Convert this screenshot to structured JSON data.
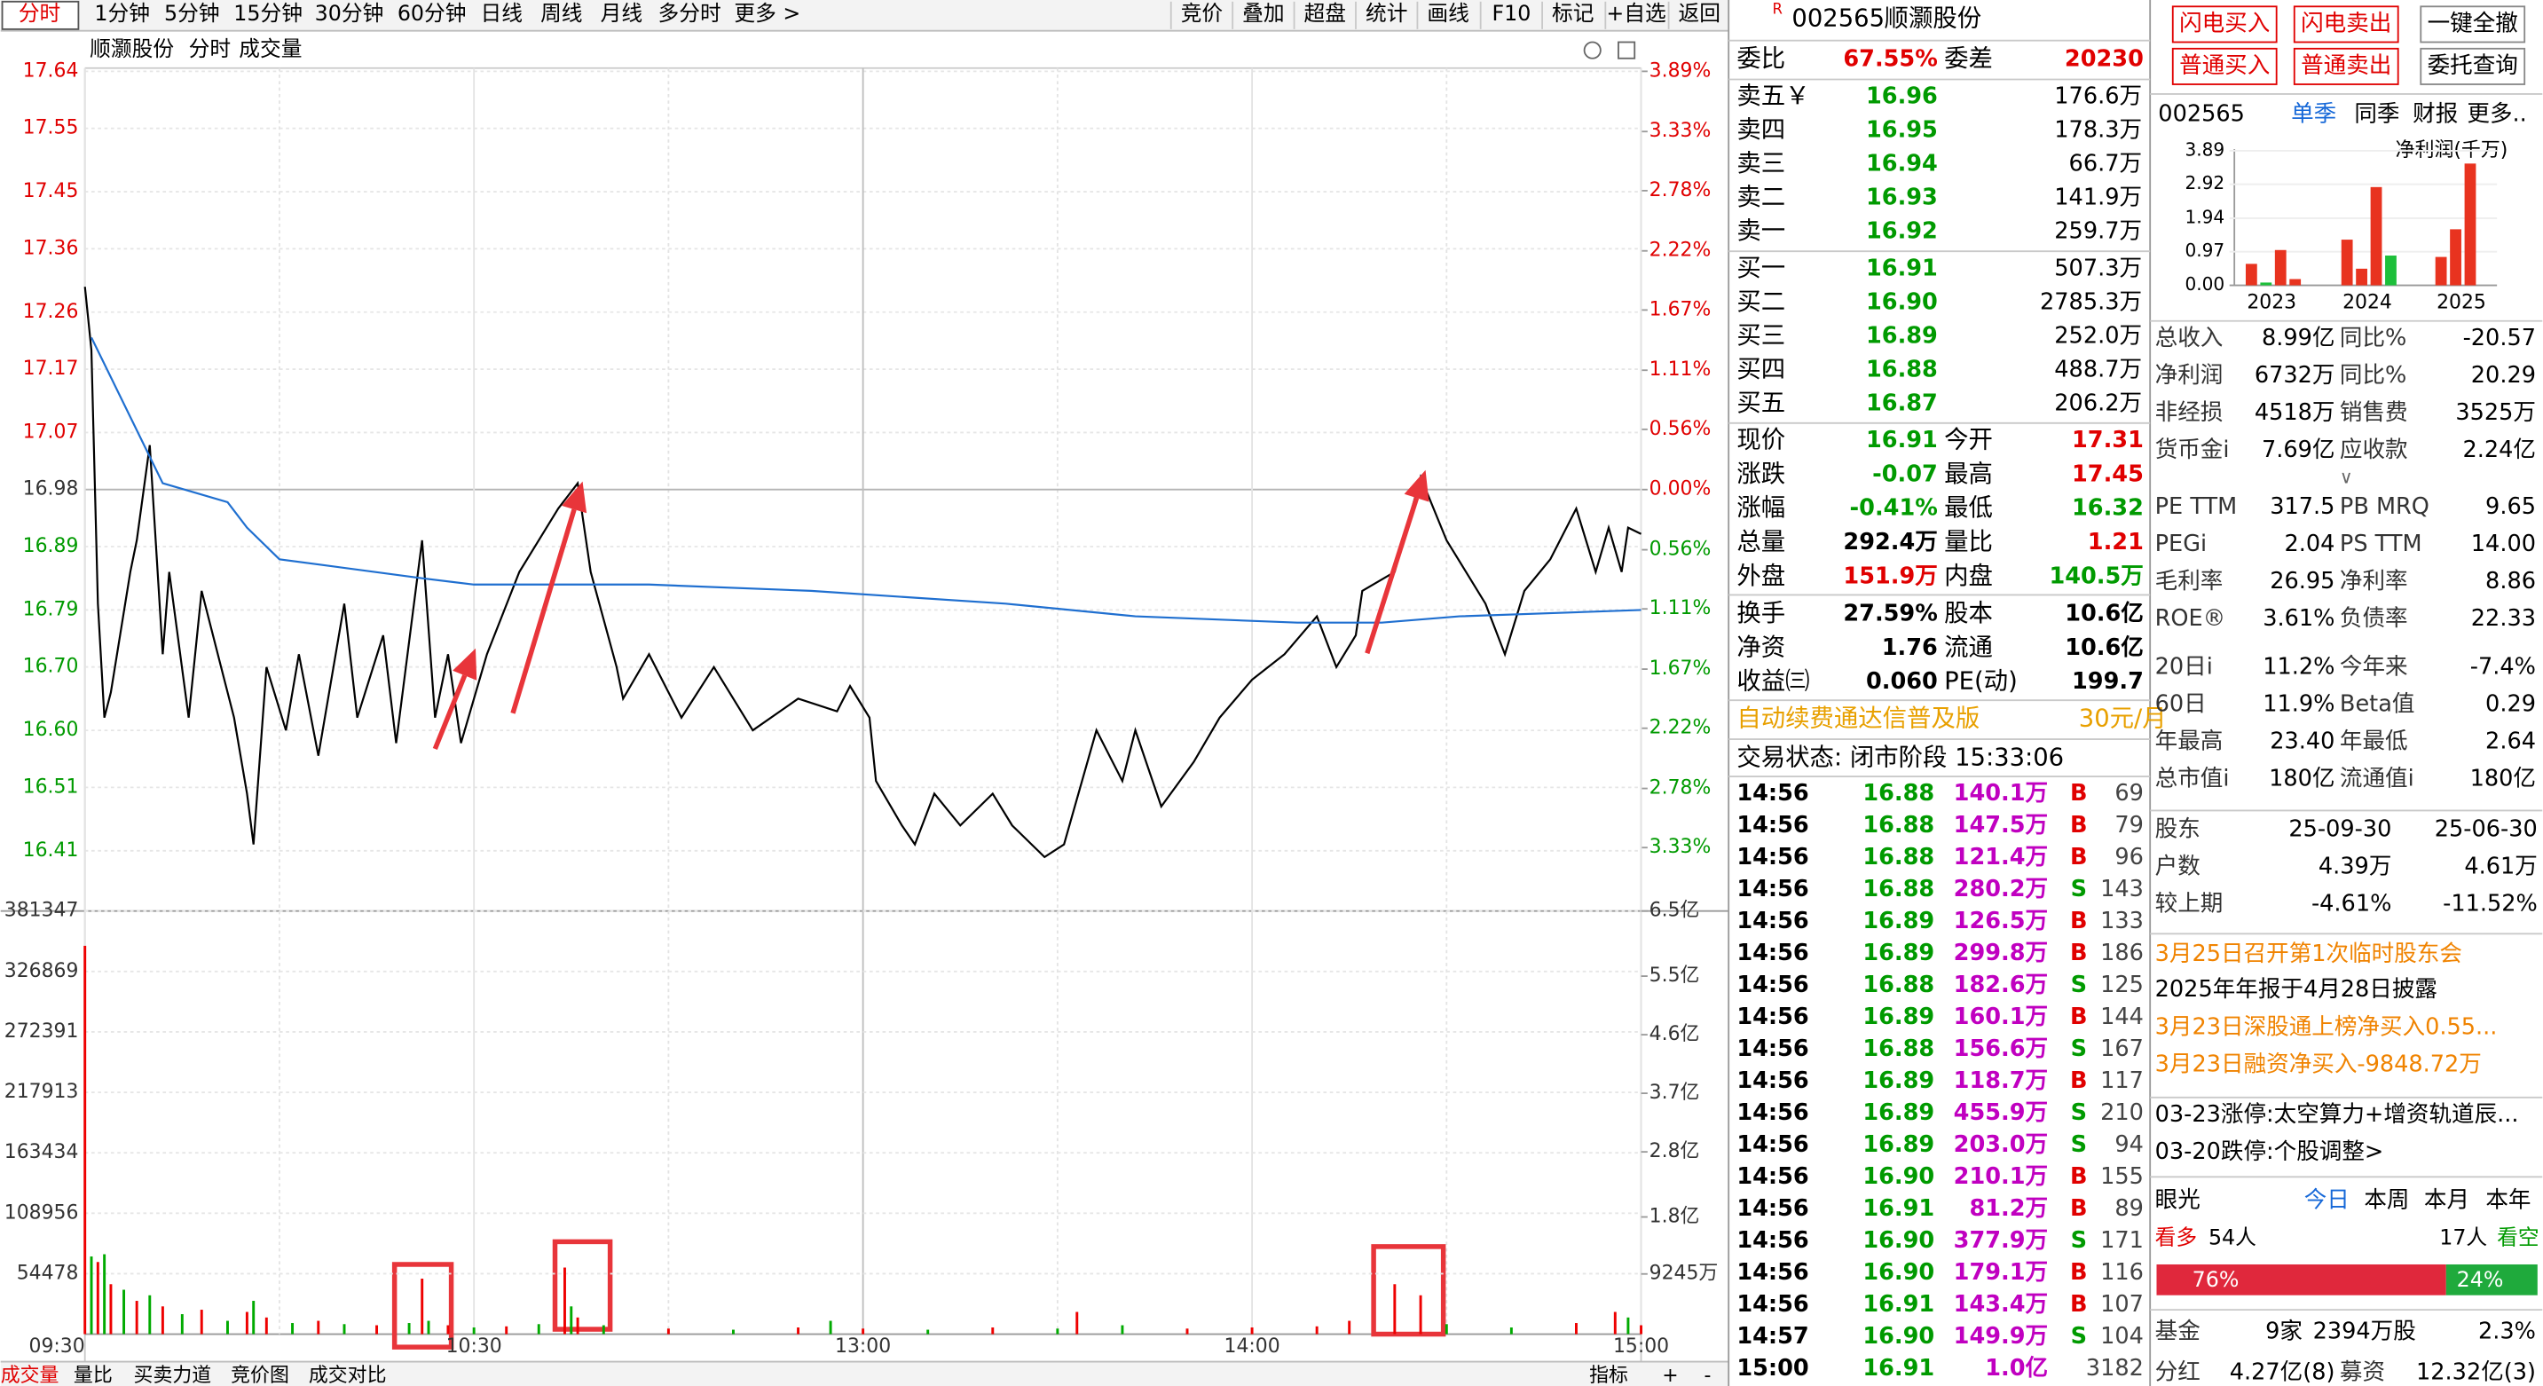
{
  "toolbar": {
    "tabs": [
      "分时",
      "1分钟",
      "5分钟",
      "15分钟",
      "30分钟",
      "60分钟",
      "日线",
      "周线",
      "月线",
      "多分时",
      "更多 >"
    ],
    "actions": [
      "竞价",
      "叠加",
      "超盘",
      "统计",
      "画线",
      "F10",
      "标记",
      "+自选",
      "返回"
    ]
  },
  "chart_header": [
    "顺灏股份",
    "分时",
    "成交量"
  ],
  "price_chart": {
    "type": "line",
    "xlim": [
      0,
      240
    ],
    "xticks": [
      {
        "value": 0,
        "label": "09:30"
      },
      {
        "value": 60,
        "label": "10:30"
      },
      {
        "value": 120,
        "label": "13:00"
      },
      {
        "value": 180,
        "label": "14:00"
      },
      {
        "value": 240,
        "label": "15:00"
      }
    ],
    "ylim": [
      16.32,
      17.64
    ],
    "yticks": [
      17.64,
      17.55,
      17.45,
      17.36,
      17.26,
      17.17,
      17.07,
      16.98,
      16.89,
      16.79,
      {
        "value": 16.7,
        "label": "16.70"
      },
      {
        "value": 16.6,
        "label": "16.60"
      },
      16.51,
      16.41
    ],
    "y2lim": [
      -3.89,
      3.89
    ],
    "y2ticks": [
      {
        "value": 3.89,
        "label": "3.89%"
      },
      {
        "value": 3.33,
        "label": "3.33%"
      },
      {
        "value": 2.78,
        "label": "2.78%"
      },
      {
        "value": 2.22,
        "label": "2.22%"
      },
      {
        "value": 1.67,
        "label": "1.67%"
      },
      {
        "value": 1.11,
        "label": "1.11%"
      },
      {
        "value": 0.56,
        "label": "0.56%"
      },
      {
        "value": 0,
        "label": "0.00%"
      },
      {
        "value": -0.56,
        "label": "0.56%"
      },
      {
        "value": -1.11,
        "label": "1.11%"
      },
      {
        "value": -1.67,
        "label": "1.67%"
      },
      {
        "value": -2.22,
        "label": "2.22%"
      },
      {
        "value": -2.78,
        "label": "2.78%"
      },
      {
        "value": -3.33,
        "label": "3.33%"
      }
    ],
    "series": [
      {
        "color": "#000000",
        "x": [
          0,
          1,
          2,
          3,
          4,
          7,
          8,
          10,
          12,
          13,
          16,
          18,
          21,
          23,
          25,
          26,
          28,
          31,
          33,
          36,
          40,
          42,
          46,
          48,
          52,
          54,
          56,
          58,
          62,
          67,
          73,
          76,
          78,
          82,
          83,
          87,
          92,
          97,
          103,
          110,
          116,
          118,
          121,
          122,
          126,
          128,
          131,
          135,
          140,
          143,
          148,
          151,
          156,
          160,
          162,
          166,
          171,
          175,
          180,
          185,
          190,
          193,
          196,
          197,
          202,
          206,
          210,
          213,
          216,
          219,
          222,
          226,
          230,
          233,
          235,
          237,
          238,
          240
        ],
        "values": [
          17.3,
          17.2,
          16.8,
          16.62,
          16.66,
          16.85,
          16.9,
          17.05,
          16.72,
          16.85,
          16.62,
          16.82,
          16.7,
          16.62,
          16.5,
          16.42,
          16.7,
          16.6,
          16.72,
          16.56,
          16.8,
          16.62,
          16.75,
          16.58,
          16.9,
          16.62,
          16.72,
          16.58,
          16.72,
          16.85,
          16.95,
          16.99,
          16.85,
          16.7,
          16.65,
          16.72,
          16.62,
          16.7,
          16.6,
          16.65,
          16.63,
          16.67,
          16.62,
          16.52,
          16.45,
          16.42,
          16.5,
          16.45,
          16.5,
          16.45,
          16.4,
          16.42,
          16.6,
          16.52,
          16.6,
          16.48,
          16.55,
          16.62,
          16.68,
          16.72,
          16.78,
          16.7,
          16.75,
          16.82,
          16.85,
          17.0,
          16.9,
          16.85,
          16.8,
          16.72,
          16.82,
          16.87,
          16.95,
          16.85,
          16.92,
          16.85,
          16.92,
          16.91
        ]
      },
      {
        "color": "#1f6fd0",
        "x": [
          1,
          12,
          22,
          25,
          30,
          52,
          60,
          87,
          112,
          142,
          162,
          187,
          200,
          212,
          240
        ],
        "values": [
          17.22,
          16.99,
          16.96,
          16.92,
          16.87,
          16.84,
          16.83,
          16.83,
          16.82,
          16.8,
          16.78,
          16.77,
          16.77,
          16.78,
          16.79
        ]
      }
    ]
  },
  "volume_chart": {
    "type": "bar",
    "ylim": [
      0,
      381347
    ],
    "yticks": [
      381347,
      326869,
      272391,
      217913,
      163434,
      108956,
      54478
    ],
    "y2lim": [
      0,
      6.5
    ],
    "y2ticks": [
      {
        "value": 6.5,
        "label": "6.5亿"
      },
      {
        "value": 5.5,
        "label": "5.5亿"
      },
      {
        "value": 4.6,
        "label": "4.6亿"
      },
      {
        "value": 3.7,
        "label": "3.7亿"
      },
      {
        "value": 2.8,
        "label": "2.8亿"
      },
      {
        "value": 1.8,
        "label": "1.8亿"
      },
      {
        "value": 0.9245,
        "label": "9245万"
      }
    ],
    "x": [
      0,
      1,
      2,
      3,
      4,
      6,
      8,
      10,
      12,
      15,
      18,
      22,
      25,
      26,
      28,
      32,
      36,
      40,
      45,
      50,
      52,
      53,
      56,
      60,
      65,
      70,
      74,
      75,
      76,
      80,
      90,
      100,
      110,
      115,
      120,
      130,
      140,
      150,
      153,
      160,
      170,
      180,
      190,
      195,
      202,
      206,
      210,
      220,
      230,
      236,
      238,
      240
    ],
    "values": [
      350000,
      70000,
      65000,
      72000,
      45000,
      40000,
      30000,
      35000,
      25000,
      18000,
      22000,
      12000,
      20000,
      30000,
      15000,
      10000,
      12000,
      9000,
      8000,
      10000,
      50000,
      12000,
      8000,
      6000,
      7000,
      9000,
      60000,
      25000,
      15000,
      8000,
      5000,
      4000,
      6000,
      12000,
      5000,
      4000,
      6000,
      5000,
      20000,
      8000,
      5000,
      6000,
      7000,
      12000,
      45000,
      35000,
      9000,
      6000,
      10000,
      20000,
      15000,
      8000
    ],
    "colors": [
      "#e00",
      "#0a0",
      "#e00",
      "#0a0",
      "#e00",
      "#0a0",
      "#e00",
      "#0a0",
      "#e00",
      "#0a0",
      "#e00",
      "#0a0",
      "#e00",
      "#0a0",
      "#e00",
      "#0a0",
      "#e00",
      "#0a0",
      "#e00",
      "#0a0",
      "#e00",
      "#0a0",
      "#e00",
      "#0a0",
      "#e00",
      "#0a0",
      "#e00",
      "#0a0",
      "#e00",
      "#0a0",
      "#e00",
      "#0a0",
      "#e00",
      "#0a0",
      "#e00",
      "#0a0",
      "#e00",
      "#0a0",
      "#e00",
      "#0a0",
      "#e00",
      "#e00",
      "#e00",
      "#e00",
      "#e00",
      "#e00",
      "#0a0",
      "#0a0",
      "#e00",
      "#e00",
      "#0a0",
      "#e00"
    ]
  },
  "bottom_tabs": [
    "成交量",
    "量比",
    "买卖力道",
    "竞价图",
    "成交对比"
  ],
  "bottom_tools": [
    "指标",
    "+",
    "-"
  ],
  "quote": {
    "marker": "R",
    "code": "002565",
    "name": "顺灏股份"
  },
  "order_book": {
    "header": [
      "委比",
      "67.55%",
      "委差",
      "20230"
    ],
    "asks": [
      [
        "卖五￥",
        "16.96",
        "176.6万"
      ],
      [
        "卖四",
        "16.95",
        "178.3万"
      ],
      [
        "卖三",
        "16.94",
        "66.7万"
      ],
      [
        "卖二",
        "16.93",
        "141.9万"
      ],
      [
        "卖一",
        "16.92",
        "259.7万"
      ]
    ],
    "bids": [
      [
        "买一",
        "16.91",
        "507.3万"
      ],
      [
        "买二",
        "16.90",
        "2785.3万"
      ],
      [
        "买三",
        "16.89",
        "252.0万"
      ],
      [
        "买四",
        "16.88",
        "488.7万"
      ],
      [
        "买五",
        "16.87",
        "206.2万"
      ]
    ]
  },
  "stats": [
    [
      "现价",
      "16.91",
      "今开",
      "17.31"
    ],
    [
      "涨跌",
      "-0.07",
      "最高",
      "17.45"
    ],
    [
      "涨幅",
      "-0.41%",
      "最低",
      "16.32"
    ],
    [
      "总量",
      "292.4万",
      "量比",
      "1.21"
    ],
    [
      "外盘",
      "151.9万",
      "内盘",
      "140.5万"
    ],
    [
      "换手",
      "27.59%",
      "股本",
      "10.6亿"
    ],
    [
      "净资",
      "1.76",
      "流通",
      "10.6亿"
    ],
    [
      "收益㈢",
      "0.060",
      "PE(动)",
      "199.7"
    ]
  ],
  "promo": [
    "自动续费通达信普及版",
    "30元/月"
  ],
  "status": "交易状态: 闭市阶段 15:33:06",
  "trades": [
    [
      "14:56",
      "16.88",
      "140.1万",
      "B",
      "69"
    ],
    [
      "14:56",
      "16.88",
      "147.5万",
      "B",
      "79"
    ],
    [
      "14:56",
      "16.88",
      "121.4万",
      "B",
      "96"
    ],
    [
      "14:56",
      "16.88",
      "280.2万",
      "S",
      "143"
    ],
    [
      "14:56",
      "16.89",
      "126.5万",
      "B",
      "133"
    ],
    [
      "14:56",
      "16.89",
      "299.8万",
      "B",
      "186"
    ],
    [
      "14:56",
      "16.88",
      "182.6万",
      "S",
      "125"
    ],
    [
      "14:56",
      "16.89",
      "160.1万",
      "B",
      "144"
    ],
    [
      "14:56",
      "16.88",
      "156.6万",
      "S",
      "167"
    ],
    [
      "14:56",
      "16.89",
      "118.7万",
      "B",
      "117"
    ],
    [
      "14:56",
      "16.89",
      "455.9万",
      "S",
      "210"
    ],
    [
      "14:56",
      "16.89",
      "203.0万",
      "S",
      "94"
    ],
    [
      "14:56",
      "16.90",
      "210.1万",
      "B",
      "155"
    ],
    [
      "14:56",
      "16.91",
      "81.2万",
      "B",
      "89"
    ],
    [
      "14:56",
      "16.90",
      "377.9万",
      "S",
      "171"
    ],
    [
      "14:56",
      "16.90",
      "179.1万",
      "B",
      "116"
    ],
    [
      "14:56",
      "16.91",
      "143.4万",
      "B",
      "107"
    ],
    [
      "14:57",
      "16.90",
      "149.9万",
      "S",
      "104"
    ],
    [
      "15:00",
      "16.91",
      "1.0亿",
      "3182"
    ]
  ],
  "trade_buttons": [
    [
      "闪电买入",
      "闪电卖出",
      "一键全撤"
    ],
    [
      "普通买入",
      "普通卖出",
      "委托查询"
    ]
  ],
  "finance_tabs": [
    "002565",
    "单季",
    "同季",
    "财报",
    "更多.."
  ],
  "profit_chart": {
    "type": "bar",
    "title": "净利润(千万)",
    "ylim": [
      0,
      3.89
    ],
    "yticks": [
      3.89,
      2.92,
      1.94,
      0.97,
      {
        "value": 0,
        "label": "0.00"
      }
    ],
    "groups": [
      {
        "label": "2023",
        "values": [
          0.62,
          0.08,
          1.02,
          0.18
        ],
        "colors": [
          "#e8331f",
          "#1dbf3a",
          "#e8331f",
          "#e8331f"
        ]
      },
      {
        "label": "2024",
        "values": [
          1.32,
          0.48,
          2.84,
          0.86
        ],
        "colors": [
          "#e8331f",
          "#e8331f",
          "#e8331f",
          "#1dbf3a"
        ]
      },
      {
        "label": "2025",
        "values": [
          0.82,
          1.62,
          3.52
        ],
        "colors": [
          "#e8331f",
          "#e8331f",
          "#e8331f"
        ]
      }
    ]
  },
  "fundamentals": [
    [
      "总收入",
      "8.99亿",
      "同比%",
      "-20.57"
    ],
    [
      "净利润",
      "6732万",
      "同比%",
      "20.29"
    ],
    [
      "非经损",
      "4518万",
      "销售费",
      "3525万"
    ],
    [
      "货币金i",
      "7.69亿",
      "应收款",
      "2.24亿"
    ]
  ],
  "expand": "∨",
  "valuation": [
    [
      "PE TTM",
      "317.5",
      "PB MRQ",
      "9.65"
    ],
    [
      "PEGi",
      "2.04",
      "PS TTM",
      "14.00"
    ],
    [
      "毛利率",
      "26.95",
      "净利率",
      "8.86"
    ],
    [
      "ROE®",
      "3.61%",
      "负债率",
      "22.33"
    ]
  ],
  "returns": [
    [
      "20日i",
      "11.2%",
      "今年来",
      "-7.4%"
    ],
    [
      "60日",
      "11.9%",
      "Beta值",
      "0.29"
    ],
    [
      "年最高",
      "23.40",
      "年最低",
      "2.64"
    ],
    [
      "总市值i",
      "180亿",
      "流通值i",
      "180亿"
    ]
  ],
  "shareholders": [
    [
      "股东",
      "25-09-30",
      "25-06-30"
    ],
    [
      "户数",
      "4.39万",
      "4.61万"
    ],
    [
      "较上期",
      "-4.61%",
      "-11.52%"
    ]
  ],
  "news": [
    {
      "text": "3月25日召开第1次临时股东会",
      "color": "#f08300"
    },
    {
      "text": "2025年年报于4月28日披露",
      "color": "#000000"
    },
    {
      "text": "3月23日深股通上榜净买入0.55...",
      "color": "#f08300"
    },
    {
      "text": "3月23日融资净买入-9848.72万",
      "color": "#f08300"
    },
    {
      "text": "03-23涨停:太空算力+增资轨道辰...",
      "color": "#000000"
    },
    {
      "text": "03-20跌停:个股调整>",
      "color": "#000000"
    }
  ],
  "sentiment": {
    "tabs": [
      "眼光",
      "今日",
      "本周",
      "本月",
      "本年"
    ],
    "bull": [
      "看多",
      "54人"
    ],
    "bear": [
      "17人",
      "看空"
    ],
    "bar": {
      "values": [
        76,
        24
      ],
      "value_labels": [
        "76%",
        "24%"
      ]
    }
  },
  "fund_rows": [
    [
      "基金",
      "9家",
      "2394万股",
      "2.3%"
    ],
    [
      "分红",
      "4.27亿(8)",
      "募资",
      "12.32亿(3)"
    ]
  ]
}
